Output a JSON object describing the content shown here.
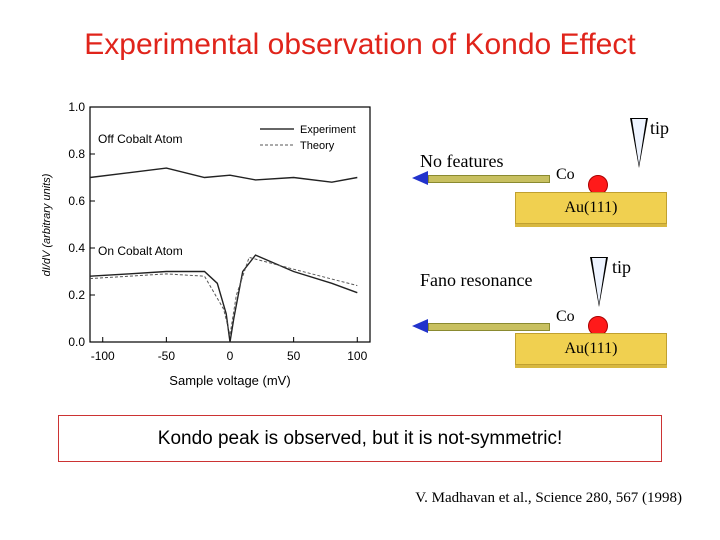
{
  "title": "Experimental observation of Kondo Effect",
  "plot": {
    "ylabel": "dI/dV (arbitrary units)",
    "xlabel": "Sample voltage (mV)",
    "xticks": [
      "-100",
      "-50",
      "0",
      "50",
      "100"
    ],
    "yticks": [
      "0.0",
      "0.2",
      "0.4",
      "0.6",
      "0.8",
      "1.0"
    ],
    "legend": {
      "experiment": "Experiment",
      "theory": "Theory"
    },
    "label_off": "Off Cobalt Atom",
    "label_on": "On Cobalt Atom"
  },
  "chart_data": {
    "type": "line",
    "xlim": [
      -110,
      110
    ],
    "ylim": [
      0.0,
      1.0
    ],
    "series": [
      {
        "name": "Experiment",
        "curve": "off",
        "x": [
          -110,
          -80,
          -50,
          -20,
          0,
          20,
          50,
          80,
          100
        ],
        "y": [
          0.7,
          0.72,
          0.74,
          0.7,
          0.71,
          0.69,
          0.7,
          0.68,
          0.7
        ]
      },
      {
        "name": "Experiment",
        "curve": "on",
        "x": [
          -110,
          -80,
          -50,
          -20,
          -10,
          -3,
          0,
          3,
          10,
          20,
          50,
          80,
          100
        ],
        "y": [
          0.28,
          0.29,
          0.3,
          0.3,
          0.25,
          0.12,
          0.0,
          0.1,
          0.3,
          0.37,
          0.3,
          0.25,
          0.21
        ]
      },
      {
        "name": "Theory",
        "curve": "on",
        "x": [
          -110,
          -50,
          -20,
          -5,
          0,
          5,
          15,
          50,
          100
        ],
        "y": [
          0.27,
          0.29,
          0.28,
          0.14,
          0.03,
          0.2,
          0.36,
          0.31,
          0.24
        ]
      }
    ]
  },
  "diagram": {
    "top": {
      "caption": "No features",
      "tip": "tip",
      "atom": "Co",
      "substrate": "Au(111)"
    },
    "bottom": {
      "caption": "Fano resonance",
      "tip": "tip",
      "atom": "Co",
      "substrate": "Au(111)"
    }
  },
  "note": "Kondo peak is observed, but it is not-symmetric!",
  "citation": "V. Madhavan et al., Science 280, 567 (1998)",
  "colors": {
    "title": "#e0241b",
    "atom": "#ff1a1a",
    "substrate": "#f0d050",
    "arrow": "#c8c060",
    "box_border": "#cc3333"
  }
}
